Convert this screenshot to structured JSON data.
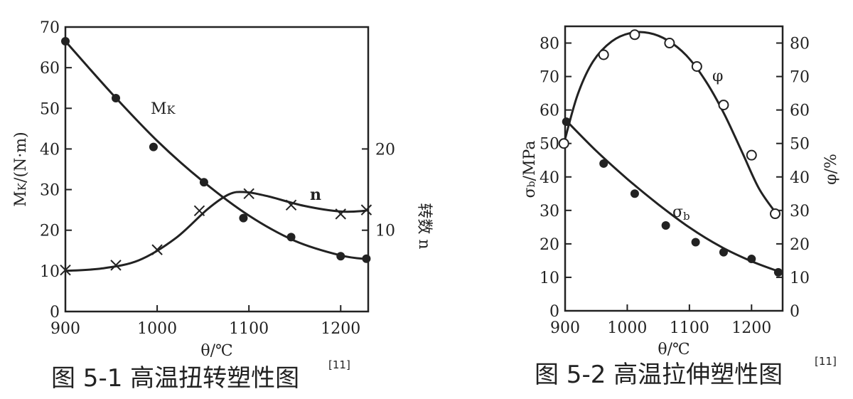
{
  "chart_data": [
    {
      "type": "line",
      "caption": "图 5-1 高温扭转塑性图",
      "caption_ref": "[11]",
      "xlabel": "θ/℃",
      "xlim": [
        900,
        1230
      ],
      "xticks": [
        900,
        1000,
        1100,
        1200
      ],
      "ylabel_left": "Mk/(N·m)",
      "ylim_left": [
        0,
        70
      ],
      "yticks_left": [
        0,
        10,
        20,
        30,
        40,
        50,
        60,
        70
      ],
      "ylabel_right": "转数 n",
      "ylim_right": [
        0,
        35
      ],
      "yticks_right": [
        10,
        20
      ],
      "series": [
        {
          "name": "Mk",
          "axis": "left",
          "marker": "filled-circle",
          "points": [
            [
              900,
              66.5
            ],
            [
              955,
              52.5
            ],
            [
              996,
              40.5
            ],
            [
              1051,
              31.8
            ],
            [
              1094,
              23.0
            ],
            [
              1146,
              18.3
            ],
            [
              1200,
              13.6
            ],
            [
              1228,
              13.0
            ]
          ],
          "curve": [
            [
              900,
              66.5
            ],
            [
              950,
              53.8
            ],
            [
              1000,
              42.0
            ],
            [
              1050,
              32.0
            ],
            [
              1100,
              23.6
            ],
            [
              1150,
              17.4
            ],
            [
              1200,
              13.8
            ],
            [
              1228,
              12.9
            ]
          ]
        },
        {
          "name": "n",
          "axis": "right",
          "marker": "cross",
          "points": [
            [
              900,
              5.1
            ],
            [
              955,
              5.7
            ],
            [
              1000,
              7.6
            ],
            [
              1046,
              12.4
            ],
            [
              1100,
              14.5
            ],
            [
              1146,
              13.1
            ],
            [
              1200,
              12.0
            ],
            [
              1228,
              12.5
            ]
          ],
          "curve": [
            [
              900,
              5.0
            ],
            [
              940,
              5.3
            ],
            [
              980,
              6.3
            ],
            [
              1020,
              9.0
            ],
            [
              1055,
              12.6
            ],
            [
              1078,
              14.4
            ],
            [
              1095,
              14.7
            ],
            [
              1120,
              14.2
            ],
            [
              1160,
              13.0
            ],
            [
              1200,
              12.3
            ],
            [
              1228,
              12.4
            ]
          ]
        }
      ],
      "annotations": [
        "Mk",
        "n"
      ]
    },
    {
      "type": "line",
      "caption": "图 5-2 高温拉伸塑性图",
      "caption_ref": "[11]",
      "xlabel": "θ/℃",
      "xlim": [
        900,
        1250
      ],
      "xticks": [
        900,
        1000,
        1100,
        1200
      ],
      "ylabel_left": "σb/MPa",
      "ylim_left": [
        0,
        85
      ],
      "yticks_left": [
        0,
        10,
        20,
        30,
        40,
        50,
        60,
        70,
        80
      ],
      "ylabel_right": "φ/%",
      "ylim_right": [
        0,
        85
      ],
      "yticks_right": [
        0,
        10,
        20,
        30,
        40,
        50,
        60,
        70,
        80
      ],
      "series": [
        {
          "name": "σb",
          "axis": "left",
          "marker": "filled-circle",
          "points": [
            [
              902,
              56.5
            ],
            [
              962,
              44.0
            ],
            [
              1012,
              35.0
            ],
            [
              1062,
              25.5
            ],
            [
              1110,
              20.5
            ],
            [
              1155,
              17.5
            ],
            [
              1200,
              15.5
            ],
            [
              1243,
              11.5
            ]
          ],
          "curve": [
            [
              902,
              56.8
            ],
            [
              950,
              47.8
            ],
            [
              1000,
              39.4
            ],
            [
              1050,
              31.8
            ],
            [
              1100,
              24.9
            ],
            [
              1150,
              19.2
            ],
            [
              1200,
              14.8
            ],
            [
              1243,
              11.8
            ]
          ]
        },
        {
          "name": "φ",
          "axis": "right",
          "marker": "open-circle",
          "points": [
            [
              898,
              50.0
            ],
            [
              962,
              76.5
            ],
            [
              1012,
              82.5
            ],
            [
              1068,
              80.0
            ],
            [
              1112,
              73.0
            ],
            [
              1155,
              61.5
            ],
            [
              1200,
              46.5
            ],
            [
              1238,
              29.0
            ]
          ],
          "curve": [
            [
              898,
              50.0
            ],
            [
              920,
              64.5
            ],
            [
              945,
              74.5
            ],
            [
              975,
              80.5
            ],
            [
              1005,
              83.0
            ],
            [
              1035,
              83.0
            ],
            [
              1065,
              80.8
            ],
            [
              1095,
              76.3
            ],
            [
              1125,
              69.0
            ],
            [
              1155,
              59.2
            ],
            [
              1185,
              47.3
            ],
            [
              1212,
              36.5
            ],
            [
              1240,
              29.0
            ]
          ]
        }
      ],
      "annotations": [
        "φ",
        "σb"
      ]
    }
  ]
}
